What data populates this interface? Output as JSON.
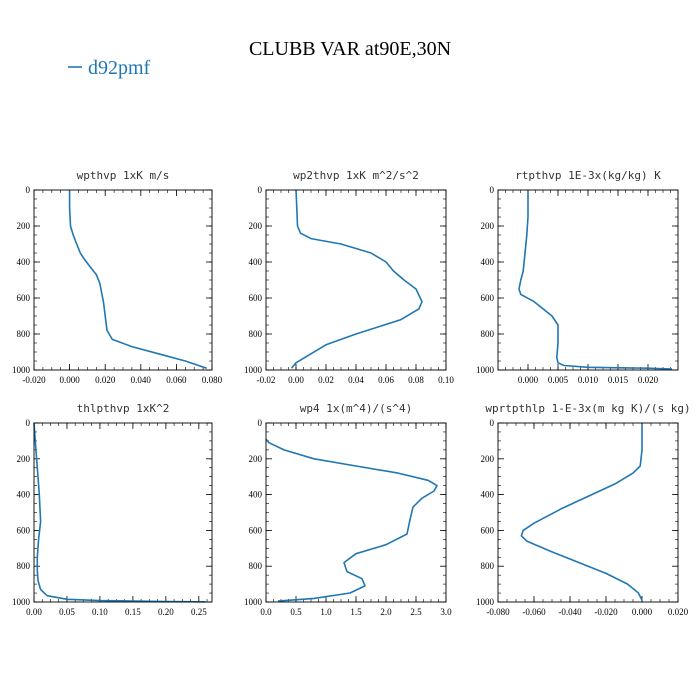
{
  "figure": {
    "title": "CLUBB VAR at90E,30N",
    "legend": {
      "label": "d92pmf",
      "color": "#1f77b4",
      "placement": "top-left"
    }
  },
  "chart_data": [
    {
      "type": "line",
      "title": "wpthvp  1xK m/s",
      "xlim": [
        -0.02,
        0.08
      ],
      "ylim": [
        1000,
        0
      ],
      "xticks": [
        "-0.020",
        "0.000",
        "0.020",
        "0.040",
        "0.060",
        "0.080"
      ],
      "xtick_values": [
        -0.02,
        0.0,
        0.02,
        0.04,
        0.06,
        0.08
      ],
      "yticks": [
        "0",
        "200",
        "400",
        "600",
        "800",
        "1000"
      ],
      "ytick_values": [
        0,
        200,
        400,
        600,
        800,
        1000
      ],
      "series": [
        {
          "name": "d92pmf",
          "color": "#1f77b4",
          "x": [
            0.0,
            0.0,
            0.0005,
            0.002,
            0.004,
            0.006,
            0.008,
            0.011,
            0.015,
            0.017,
            0.018,
            0.019,
            0.02,
            0.021,
            0.024,
            0.035,
            0.05,
            0.065,
            0.077
          ],
          "y": [
            0,
            100,
            200,
            250,
            300,
            350,
            380,
            420,
            470,
            520,
            570,
            620,
            700,
            780,
            830,
            870,
            910,
            950,
            990
          ]
        }
      ]
    },
    {
      "type": "line",
      "title": "wp2thvp  1xK m^2/s^2",
      "xlim": [
        -0.02,
        0.1
      ],
      "ylim": [
        1000,
        0
      ],
      "xticks": [
        "-0.02",
        "0.00",
        "0.02",
        "0.04",
        "0.06",
        "0.08",
        "0.10"
      ],
      "xtick_values": [
        -0.02,
        0.0,
        0.02,
        0.04,
        0.06,
        0.08,
        0.1
      ],
      "yticks": [
        "0",
        "200",
        "400",
        "600",
        "800",
        "1000"
      ],
      "ytick_values": [
        0,
        200,
        400,
        600,
        800,
        1000
      ],
      "series": [
        {
          "name": "d92pmf",
          "color": "#1f77b4",
          "x": [
            0.0,
            0.0005,
            0.001,
            0.003,
            0.01,
            0.03,
            0.05,
            0.06,
            0.065,
            0.072,
            0.08,
            0.084,
            0.082,
            0.07,
            0.04,
            0.02,
            0.008,
            0.0,
            -0.003
          ],
          "y": [
            0,
            100,
            200,
            240,
            270,
            300,
            350,
            400,
            450,
            500,
            550,
            620,
            660,
            720,
            800,
            860,
            920,
            960,
            990
          ]
        }
      ]
    },
    {
      "type": "line",
      "title": "rtpthvp  1E-3x(kg/kg) K",
      "xlim": [
        -0.005,
        0.025
      ],
      "ylim": [
        1000,
        0
      ],
      "xticks": [
        "0.000",
        "0.005",
        "0.010",
        "0.015",
        "0.020"
      ],
      "xtick_values": [
        0.0,
        0.005,
        0.01,
        0.015,
        0.02
      ],
      "yticks": [
        "0",
        "200",
        "400",
        "600",
        "800",
        "1000"
      ],
      "ytick_values": [
        0,
        200,
        400,
        600,
        800,
        1000
      ],
      "series": [
        {
          "name": "d92pmf",
          "color": "#1f77b4",
          "x": [
            0.0,
            0.0,
            -0.0002,
            -0.0005,
            -0.0008,
            -0.0012,
            -0.0015,
            -0.0012,
            0.001,
            0.004,
            0.005,
            0.005,
            0.0048,
            0.005,
            0.006,
            0.01,
            0.02,
            0.024
          ],
          "y": [
            0,
            150,
            250,
            350,
            450,
            500,
            550,
            580,
            620,
            700,
            750,
            850,
            930,
            960,
            975,
            985,
            990,
            995
          ]
        }
      ]
    },
    {
      "type": "line",
      "title": "thlpthvp  1xK^2",
      "xlim": [
        0.0,
        0.27
      ],
      "ylim": [
        1000,
        0
      ],
      "xticks": [
        "0.00",
        "0.05",
        "0.10",
        "0.15",
        "0.20",
        "0.25"
      ],
      "xtick_values": [
        0.0,
        0.05,
        0.1,
        0.15,
        0.2,
        0.25
      ],
      "yticks": [
        "0",
        "200",
        "400",
        "600",
        "800",
        "1000"
      ],
      "ytick_values": [
        0,
        200,
        400,
        600,
        800,
        1000
      ],
      "series": [
        {
          "name": "d92pmf",
          "color": "#1f77b4",
          "x": [
            0.0,
            0.002,
            0.004,
            0.006,
            0.008,
            0.01,
            0.007,
            0.005,
            0.005,
            0.006,
            0.01,
            0.02,
            0.05,
            0.1,
            0.2,
            0.26
          ],
          "y": [
            0,
            100,
            200,
            300,
            400,
            550,
            650,
            750,
            820,
            880,
            930,
            965,
            985,
            992,
            997,
            999
          ]
        }
      ]
    },
    {
      "type": "line",
      "title": "wp4  1x(m^4)/(s^4)",
      "xlim": [
        0.0,
        3.0
      ],
      "ylim": [
        1000,
        0
      ],
      "xticks": [
        "0.0",
        "0.5",
        "1.0",
        "1.5",
        "2.0",
        "2.5",
        "3.0"
      ],
      "xtick_values": [
        0.0,
        0.5,
        1.0,
        1.5,
        2.0,
        2.5,
        3.0
      ],
      "yticks": [
        "0",
        "200",
        "400",
        "600",
        "800",
        "1000"
      ],
      "ytick_values": [
        0,
        200,
        400,
        600,
        800,
        1000
      ],
      "series": [
        {
          "name": "d92pmf",
          "color": "#1f77b4",
          "x": [
            0.0,
            0.05,
            0.3,
            0.8,
            1.5,
            2.2,
            2.7,
            2.85,
            2.8,
            2.6,
            2.45,
            2.4,
            2.35,
            2.0,
            1.5,
            1.3,
            1.35,
            1.6,
            1.65,
            1.4,
            0.8,
            0.2
          ],
          "y": [
            90,
            110,
            150,
            200,
            240,
            280,
            320,
            350,
            380,
            420,
            470,
            540,
            620,
            680,
            730,
            780,
            830,
            870,
            910,
            950,
            980,
            995
          ]
        }
      ]
    },
    {
      "type": "line",
      "title": "wprtpthlp  1-E-3x(m kg K)/(s kg)",
      "xlim": [
        -0.08,
        0.02
      ],
      "ylim": [
        1000,
        0
      ],
      "xticks": [
        "-0.080",
        "-0.060",
        "-0.040",
        "-0.020",
        "0.000",
        "0.020"
      ],
      "xtick_values": [
        -0.08,
        -0.06,
        -0.04,
        -0.02,
        0.0,
        0.02
      ],
      "yticks": [
        "0",
        "200",
        "400",
        "600",
        "800",
        "1000"
      ],
      "ytick_values": [
        0,
        200,
        400,
        600,
        800,
        1000
      ],
      "series": [
        {
          "name": "d92pmf",
          "color": "#1f77b4",
          "x": [
            0.0,
            0.0,
            -0.001,
            -0.005,
            -0.015,
            -0.03,
            -0.045,
            -0.06,
            -0.066,
            -0.067,
            -0.064,
            -0.05,
            -0.035,
            -0.02,
            -0.008,
            -0.002,
            0.0
          ],
          "y": [
            0,
            150,
            240,
            280,
            340,
            410,
            480,
            560,
            600,
            630,
            660,
            720,
            780,
            840,
            900,
            950,
            990
          ]
        }
      ]
    }
  ]
}
